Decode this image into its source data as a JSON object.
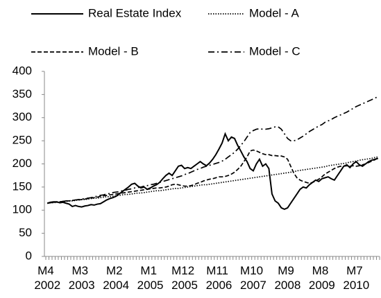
{
  "chart_data": {
    "type": "line",
    "categories": [
      "M4 2002",
      null,
      null,
      null,
      null,
      null,
      null,
      null,
      null,
      null,
      null,
      "M3 2003",
      null,
      null,
      null,
      null,
      null,
      null,
      null,
      null,
      null,
      null,
      "M2 2004",
      null,
      null,
      null,
      null,
      null,
      null,
      null,
      null,
      null,
      null,
      "M1 2005",
      null,
      null,
      null,
      null,
      null,
      null,
      null,
      null,
      null,
      null,
      "M12 2005",
      null,
      null,
      null,
      null,
      null,
      null,
      null,
      null,
      null,
      null,
      "M11 2006",
      null,
      null,
      null,
      null,
      null,
      null,
      null,
      null,
      null,
      null,
      "M10 2007",
      null,
      null,
      null,
      null,
      null,
      null,
      null,
      null,
      null,
      null,
      "M9 2008",
      null,
      null,
      null,
      null,
      null,
      null,
      null,
      null,
      null,
      null,
      "M8 2009",
      null,
      null,
      null,
      null,
      null,
      null,
      null,
      null,
      null,
      null,
      "M7 2010",
      null,
      null,
      null,
      null,
      null,
      null,
      null
    ],
    "series": [
      {
        "name": "Real Estate Index",
        "color": "#000000",
        "dash": "solid",
        "values": [
          115,
          117,
          118,
          118,
          116,
          117,
          115,
          113,
          108,
          110,
          108,
          107,
          109,
          110,
          112,
          111,
          113,
          114,
          118,
          122,
          125,
          127,
          130,
          135,
          140,
          145,
          150,
          156,
          158,
          152,
          148,
          150,
          145,
          148,
          152,
          155,
          160,
          168,
          175,
          180,
          175,
          185,
          195,
          197,
          190,
          192,
          190,
          195,
          200,
          205,
          200,
          196,
          202,
          210,
          220,
          232,
          245,
          265,
          250,
          258,
          255,
          240,
          228,
          215,
          205,
          190,
          185,
          200,
          210,
          195,
          200,
          190,
          135,
          120,
          115,
          105,
          102,
          105,
          115,
          125,
          135,
          145,
          150,
          148,
          155,
          160,
          165,
          162,
          168,
          170,
          172,
          168,
          165,
          175,
          185,
          195,
          198,
          192,
          200,
          205,
          198,
          195,
          200,
          205,
          208,
          210,
          212
        ]
      },
      {
        "name": "Model - A",
        "color": "#000000",
        "dash": "dotted",
        "values": [
          115,
          116,
          116,
          117,
          118,
          118,
          119,
          120,
          120,
          121,
          122,
          123,
          123,
          124,
          125,
          126,
          126,
          127,
          128,
          129,
          129,
          130,
          131,
          132,
          133,
          134,
          134,
          135,
          136,
          137,
          137,
          138,
          139,
          140,
          141,
          142,
          142,
          143,
          144,
          145,
          146,
          147,
          147,
          148,
          149,
          150,
          151,
          152,
          153,
          154,
          155,
          155,
          156,
          157,
          158,
          159,
          160,
          161,
          162,
          163,
          164,
          165,
          166,
          167,
          168,
          169,
          170,
          171,
          172,
          173,
          174,
          175,
          176,
          177,
          178,
          179,
          180,
          181,
          182,
          183,
          185,
          186,
          187,
          188,
          189,
          190,
          191,
          192,
          193,
          194,
          196,
          197,
          198,
          199,
          200,
          201,
          202,
          204,
          205,
          206,
          208,
          209,
          210,
          211,
          212,
          214,
          215
        ]
      },
      {
        "name": "Model - B",
        "color": "#000000",
        "dash": "dashed",
        "values": [
          115,
          116,
          117,
          118,
          118,
          119,
          120,
          120,
          121,
          122,
          122,
          123,
          124,
          125,
          126,
          127,
          128,
          130,
          131,
          132,
          133,
          134,
          135,
          136,
          137,
          138,
          139,
          140,
          141,
          142,
          143,
          144,
          145,
          146,
          147,
          148,
          148,
          149,
          150,
          152,
          155,
          156,
          155,
          153,
          152,
          152,
          153,
          155,
          158,
          160,
          163,
          165,
          167,
          168,
          170,
          172,
          172,
          173,
          175,
          178,
          182,
          188,
          195,
          205,
          215,
          228,
          230,
          228,
          225,
          222,
          220,
          220,
          218,
          218,
          217,
          217,
          215,
          210,
          195,
          180,
          170,
          165,
          162,
          160,
          158,
          160,
          163,
          167,
          172,
          178,
          182,
          186,
          190,
          193,
          195,
          195,
          196,
          195,
          196,
          195,
          196,
          198,
          200,
          203,
          206,
          209,
          213
        ]
      },
      {
        "name": "Model - C",
        "color": "#000000",
        "dash": "dashdot",
        "values": [
          115,
          116,
          117,
          117,
          118,
          119,
          120,
          120,
          121,
          122,
          123,
          124,
          125,
          126,
          127,
          129,
          130,
          132,
          133,
          135,
          136,
          138,
          139,
          140,
          142,
          143,
          145,
          146,
          148,
          149,
          150,
          152,
          153,
          155,
          156,
          158,
          160,
          162,
          164,
          166,
          168,
          170,
          172,
          174,
          177,
          179,
          182,
          185,
          188,
          190,
          193,
          195,
          197,
          199,
          201,
          203,
          206,
          210,
          215,
          220,
          225,
          232,
          240,
          248,
          258,
          268,
          272,
          275,
          276,
          275,
          275,
          276,
          278,
          280,
          280,
          275,
          265,
          255,
          250,
          250,
          252,
          256,
          260,
          265,
          270,
          274,
          278,
          282,
          285,
          290,
          293,
          296,
          300,
          303,
          306,
          309,
          312,
          316,
          320,
          324,
          327,
          330,
          333,
          336,
          339,
          342,
          346
        ]
      }
    ],
    "ylim": [
      0,
      400
    ],
    "yticks": [
      0,
      50,
      100,
      150,
      200,
      250,
      300,
      350,
      400
    ],
    "grid": false,
    "legend": "top"
  }
}
